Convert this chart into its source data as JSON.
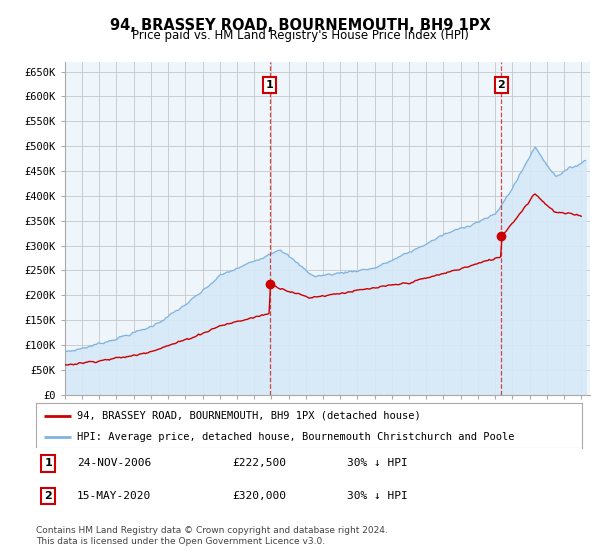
{
  "title": "94, BRASSEY ROAD, BOURNEMOUTH, BH9 1PX",
  "subtitle": "Price paid vs. HM Land Registry's House Price Index (HPI)",
  "ylabel_ticks": [
    "£0",
    "£50K",
    "£100K",
    "£150K",
    "£200K",
    "£250K",
    "£300K",
    "£350K",
    "£400K",
    "£450K",
    "£500K",
    "£550K",
    "£600K",
    "£650K"
  ],
  "ytick_values": [
    0,
    50000,
    100000,
    150000,
    200000,
    250000,
    300000,
    350000,
    400000,
    450000,
    500000,
    550000,
    600000,
    650000
  ],
  "ylim": [
    0,
    670000
  ],
  "xlim_start": 1995.0,
  "xlim_end": 2025.5,
  "hpi_color": "#7EB3E0",
  "hpi_fill_color": "#D6E8F7",
  "price_color": "#CC0000",
  "grid_color": "#CCCCCC",
  "background_color": "#FFFFFF",
  "chart_bg_color": "#EEF5FB",
  "marker1_x": 2006.9,
  "marker1_y": 222500,
  "marker1_label": "1",
  "marker2_x": 2020.37,
  "marker2_y": 320000,
  "marker2_label": "2",
  "annotation1_date": "24-NOV-2006",
  "annotation1_price": "£222,500",
  "annotation1_hpi": "30% ↓ HPI",
  "annotation2_date": "15-MAY-2020",
  "annotation2_price": "£320,000",
  "annotation2_hpi": "30% ↓ HPI",
  "legend_label1": "94, BRASSEY ROAD, BOURNEMOUTH, BH9 1PX (detached house)",
  "legend_label2": "HPI: Average price, detached house, Bournemouth Christchurch and Poole",
  "footer": "Contains HM Land Registry data © Crown copyright and database right 2024.\nThis data is licensed under the Open Government Licence v3.0."
}
